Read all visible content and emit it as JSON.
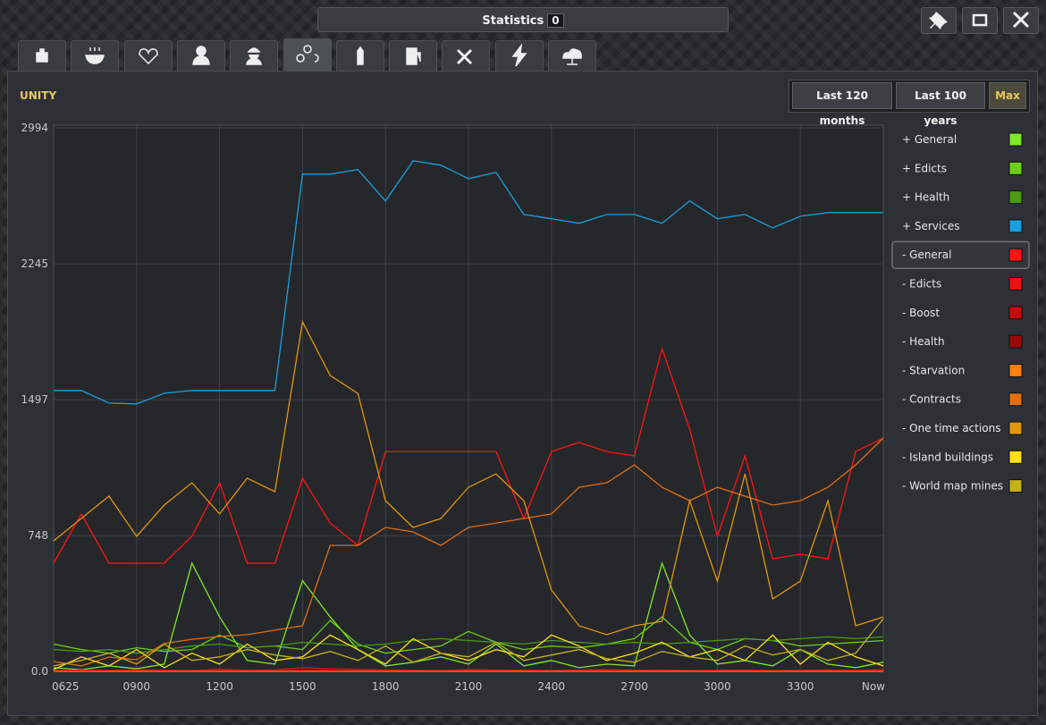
{
  "window": {
    "title": "Statistics",
    "badge": 0
  },
  "range_buttons": [
    "Last 120 months",
    "Last 100 years",
    "Max"
  ],
  "active_range": "Max",
  "chart_data": {
    "type": "line",
    "title": "UNITY",
    "categories": [
      "0625",
      null,
      null,
      "0900",
      null,
      null,
      "1200",
      null,
      null,
      "1500",
      null,
      null,
      "1800",
      null,
      null,
      "2100",
      null,
      null,
      "2400",
      null,
      null,
      "2700",
      null,
      null,
      "3000",
      null,
      null,
      "3300",
      null,
      null,
      "Now"
    ],
    "ylim": [
      0,
      2994
    ],
    "yticks": [
      {
        "value": 0,
        "label": "0.0"
      },
      748,
      1497,
      2245,
      2994
    ],
    "grid": true,
    "series": [
      {
        "name": "+ General",
        "color": "#7fe82a",
        "values": [
          20,
          10,
          30,
          15,
          40,
          596,
          300,
          60,
          40,
          500,
          300,
          120,
          30,
          50,
          80,
          40,
          150,
          30,
          60,
          20,
          40,
          30,
          596,
          200,
          40,
          60,
          30,
          120,
          40,
          20,
          50
        ]
      },
      {
        "name": "+ Edicts",
        "color": "#6cd018",
        "values": [
          150,
          120,
          100,
          130,
          110,
          120,
          200,
          130,
          140,
          120,
          280,
          150,
          100,
          120,
          140,
          220,
          160,
          120,
          140,
          130,
          150,
          180,
          300,
          160,
          120,
          180,
          170,
          140,
          150,
          160,
          170
        ]
      },
      {
        "name": "+ Health",
        "color": "#4a9a14",
        "values": [
          120,
          110,
          120,
          100,
          120,
          140,
          150,
          130,
          140,
          160,
          150,
          140,
          150,
          170,
          180,
          170,
          160,
          150,
          170,
          160,
          150,
          160,
          150,
          160,
          170,
          180,
          170,
          180,
          190,
          180,
          190
        ]
      },
      {
        "name": "+ Services",
        "color": "#1a9fe0",
        "values": [
          1547,
          1547,
          1478,
          1473,
          1532,
          1547,
          1547,
          1547,
          1547,
          2739,
          2739,
          2764,
          2591,
          2813,
          2788,
          2714,
          2749,
          2517,
          2493,
          2468,
          2517,
          2517,
          2468,
          2591,
          2493,
          2517,
          2443,
          2507,
          2527,
          2527,
          2527
        ]
      },
      {
        "name": "- General",
        "color": "#ff1414",
        "selected": true,
        "values": [
          596,
          867,
          596,
          596,
          596,
          744,
          1039,
          596,
          596,
          1064,
          817,
          694,
          1211,
          1211,
          1211,
          1211,
          1211,
          842,
          1211,
          1261,
          1211,
          1187,
          1778,
          1334,
          744,
          1187,
          620,
          645,
          620,
          1211,
          1285
        ]
      },
      {
        "name": "- Edicts",
        "color": "#e81212",
        "values": [
          5,
          8,
          4,
          10,
          6,
          5,
          12,
          6,
          8,
          20,
          15,
          10,
          8,
          6,
          5,
          10,
          8,
          6,
          5,
          8,
          10,
          6,
          8,
          5,
          6,
          8,
          5,
          6,
          8,
          5,
          10
        ]
      },
      {
        "name": "- Boost",
        "color": "#c80c0c",
        "values": [
          2,
          3,
          2,
          4,
          3,
          2,
          5,
          3,
          4,
          8,
          6,
          4,
          3,
          2,
          3,
          4,
          3,
          2,
          3,
          4,
          3,
          2,
          4,
          3,
          2,
          3,
          4,
          2,
          3,
          2,
          4
        ]
      },
      {
        "name": "- Health",
        "color": "#9c0a0a",
        "values": [
          1,
          2,
          1,
          2,
          1,
          2,
          3,
          2,
          2,
          4,
          3,
          2,
          2,
          1,
          2,
          2,
          1,
          2,
          1,
          2,
          2,
          1,
          2,
          1,
          2,
          1,
          2,
          1,
          2,
          1,
          2
        ]
      },
      {
        "name": "- Starvation",
        "color": "#ff7f12",
        "values": [
          0,
          0,
          0,
          0,
          0,
          0,
          0,
          0,
          0,
          0,
          0,
          0,
          0,
          0,
          0,
          0,
          0,
          0,
          0,
          0,
          0,
          0,
          0,
          0,
          0,
          0,
          0,
          0,
          0,
          0,
          0
        ]
      },
      {
        "name": "- Contracts",
        "color": "#e26e12",
        "values": [
          54,
          30,
          79,
          64,
          153,
          177,
          192,
          202,
          227,
          251,
          694,
          694,
          793,
          768,
          694,
          793,
          817,
          842,
          867,
          1014,
          1039,
          1137,
          1014,
          940,
          1014,
          965,
          916,
          940,
          1014,
          1137,
          1285
        ]
      },
      {
        "name": "- One time actions",
        "color": "#e2960e",
        "values": [
          719,
          842,
          965,
          744,
          916,
          1039,
          867,
          1064,
          990,
          1925,
          1630,
          1531,
          940,
          793,
          842,
          1014,
          1088,
          940,
          448,
          251,
          202,
          251,
          276,
          940,
          497,
          1088,
          399,
          497,
          940,
          251,
          300
        ]
      },
      {
        "name": "- Island buildings",
        "color": "#ffe014",
        "values": [
          10,
          80,
          30,
          120,
          20,
          100,
          40,
          150,
          60,
          80,
          200,
          120,
          40,
          180,
          100,
          60,
          120,
          80,
          200,
          140,
          60,
          100,
          160,
          80,
          120,
          60,
          200,
          40,
          160,
          80,
          30
        ]
      },
      {
        "name": "- World map mines",
        "color": "#c4b018",
        "values": [
          30,
          60,
          100,
          40,
          150,
          60,
          80,
          120,
          90,
          70,
          110,
          60,
          140,
          50,
          100,
          80,
          160,
          60,
          90,
          120,
          70,
          50,
          110,
          80,
          60,
          140,
          90,
          120,
          60,
          100,
          290
        ]
      }
    ]
  }
}
